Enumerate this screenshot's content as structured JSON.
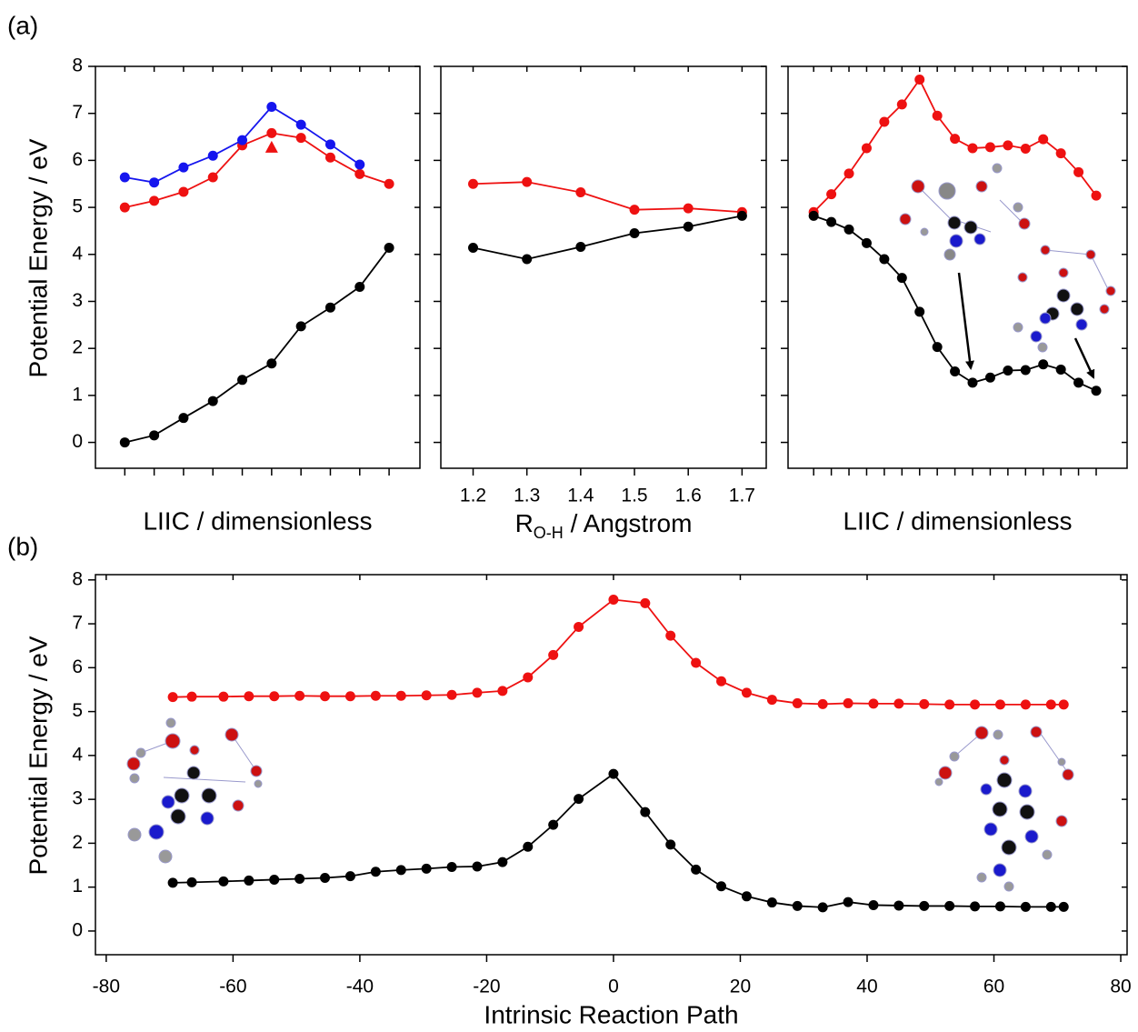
{
  "panel_labels": [
    "(a)",
    "(b)"
  ],
  "chart_data": [
    {
      "type": "line",
      "ylabel": "Potential Energy / eV",
      "xlabel": "LIIC / dimensionless",
      "x": [
        1,
        2,
        3,
        4,
        5,
        6,
        7,
        8,
        9,
        10
      ],
      "xlim": [
        0,
        11.05
      ],
      "ylim": [
        -0.55,
        8
      ],
      "yticks": [
        0,
        1,
        2,
        3,
        4,
        5,
        6,
        7,
        8
      ],
      "series": [
        {
          "color": "#000000",
          "values": [
            0,
            0.15,
            0.52,
            0.88,
            1.33,
            1.68,
            2.47,
            2.87,
            3.31,
            4.14
          ]
        },
        {
          "color": "#ee1111",
          "values": [
            5.0,
            5.14,
            5.33,
            5.64,
            6.32,
            6.58,
            6.48,
            6.06,
            5.71,
            5.5
          ]
        },
        {
          "color": "#1515ee",
          "values": [
            5.64,
            5.53,
            5.85,
            6.1,
            6.43,
            7.14,
            6.76,
            6.34,
            5.91,
            null
          ]
        },
        {
          "color": "#ee1111",
          "marker": "triangle",
          "x": [
            6
          ],
          "values": [
            6.28
          ]
        }
      ]
    },
    {
      "type": "line",
      "xlabel": {
        "main": "R",
        "sub": "O-H",
        "rest": " / Angstrom"
      },
      "x": [
        1.2,
        1.3,
        1.4,
        1.5,
        1.6,
        1.7
      ],
      "xlim": [
        1.14,
        1.745
      ],
      "ylim": [
        -0.55,
        8
      ],
      "xticks": [
        1.2,
        1.3,
        1.4,
        1.5,
        1.6,
        1.7
      ],
      "series": [
        {
          "color": "#ee1111",
          "values": [
            5.5,
            5.54,
            5.32,
            4.95,
            4.98,
            4.9
          ]
        },
        {
          "color": "#000000",
          "values": [
            4.14,
            3.9,
            4.16,
            4.45,
            4.59,
            4.82
          ]
        }
      ]
    },
    {
      "type": "line",
      "xlabel": "LIIC / dimensionless",
      "x": [
        1,
        2,
        3,
        4,
        5,
        6,
        7,
        8,
        9,
        10,
        11,
        12,
        13,
        14,
        15,
        16,
        17
      ],
      "xlim": [
        -0.45,
        18.75
      ],
      "ylim": [
        -0.55,
        8
      ],
      "series": [
        {
          "color": "#ee1111",
          "values": [
            4.9,
            5.28,
            5.72,
            6.26,
            6.82,
            7.19,
            7.72,
            6.95,
            6.46,
            6.26,
            6.28,
            6.32,
            6.25,
            6.45,
            6.15,
            5.75,
            5.25
          ]
        },
        {
          "color": "#000000",
          "values": [
            4.82,
            4.69,
            4.53,
            4.24,
            3.9,
            3.5,
            2.78,
            2.03,
            1.51,
            1.27,
            1.38,
            1.53,
            1.54,
            1.66,
            1.55,
            1.27,
            1.1
          ]
        }
      ]
    },
    {
      "type": "line",
      "ylabel": "Potential Energy / eV",
      "xlabel": "Intrinsic Reaction Path",
      "x": [
        -69.5,
        -66.5,
        -61.5,
        -57.5,
        -53.5,
        -49.5,
        -45.5,
        -41.5,
        -37.5,
        -33.5,
        -29.5,
        -25.5,
        -21.5,
        -17.5,
        -13.5,
        -9.5,
        -5.5,
        0,
        5,
        9,
        13,
        17,
        21,
        25,
        29,
        33,
        37,
        41,
        45,
        49,
        53,
        57,
        61,
        65,
        69,
        71
      ],
      "xlim": [
        -81.7,
        81
      ],
      "ylim": [
        -0.54,
        8.12
      ],
      "xticks": [
        -80,
        -60,
        -40,
        -20,
        0,
        20,
        40,
        60,
        80
      ],
      "yticks": [
        0,
        1,
        2,
        3,
        4,
        5,
        6,
        7,
        8
      ],
      "series": [
        {
          "color": "#ee1111",
          "values": [
            5.33,
            5.34,
            5.34,
            5.35,
            5.35,
            5.36,
            5.35,
            5.35,
            5.36,
            5.36,
            5.37,
            5.38,
            5.43,
            5.47,
            5.78,
            6.29,
            6.93,
            7.55,
            7.47,
            6.73,
            6.11,
            5.69,
            5.43,
            5.27,
            5.19,
            5.17,
            5.19,
            5.18,
            5.18,
            5.17,
            5.16,
            5.16,
            5.16,
            5.16,
            5.16,
            5.16
          ]
        },
        {
          "color": "#000000",
          "values": [
            1.1,
            1.11,
            1.13,
            1.15,
            1.17,
            1.19,
            1.21,
            1.25,
            1.35,
            1.39,
            1.42,
            1.46,
            1.47,
            1.57,
            1.92,
            2.42,
            3.01,
            3.58,
            2.71,
            1.97,
            1.4,
            1.02,
            0.79,
            0.65,
            0.57,
            0.54,
            0.66,
            0.59,
            0.58,
            0.57,
            0.57,
            0.56,
            0.56,
            0.55,
            0.55,
            0.55
          ]
        }
      ]
    }
  ]
}
